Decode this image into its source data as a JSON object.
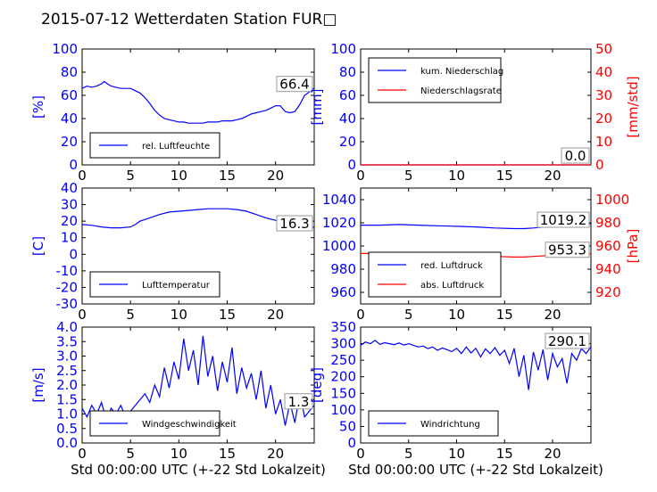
{
  "title": "2015-07-12 Wetterdaten Station FUR□",
  "colors": {
    "primary": "#0000ff",
    "secondary": "#ff0000",
    "axis": "#000000"
  },
  "chart_data": [
    {
      "id": "humidity",
      "type": "line",
      "ylabel": "[%]",
      "ylim": [
        0,
        100
      ],
      "yticks": [
        "0",
        "20",
        "40",
        "60",
        "80",
        "100"
      ],
      "xlim": [
        0,
        24
      ],
      "xticks": [
        "0",
        "5",
        "10",
        "15",
        "20"
      ],
      "xlabel": "",
      "value_label": "66.4",
      "legend": {
        "placement": "lower-left",
        "entries": [
          "rel. Luftfeuchte"
        ]
      },
      "series": [
        {
          "name": "rel. Luftfeuchte",
          "color": "#0000ff",
          "x": [
            0,
            0.5,
            1,
            1.5,
            2,
            2.3,
            2.6,
            3,
            3.5,
            4,
            4.5,
            5,
            5.5,
            6,
            6.5,
            7,
            7.5,
            8,
            8.5,
            9,
            9.5,
            10,
            10.5,
            11,
            11.5,
            12,
            12.5,
            13,
            13.5,
            14,
            14.5,
            15,
            15.5,
            16,
            16.5,
            17,
            17.5,
            18,
            18.5,
            19,
            19.5,
            20,
            20.5,
            21,
            21.5,
            22,
            22.5,
            23,
            23.5,
            24
          ],
          "values": [
            66,
            68,
            67,
            68,
            70,
            72,
            70,
            68,
            67,
            66,
            66,
            66,
            64,
            62,
            58,
            53,
            47,
            43,
            40,
            39,
            38,
            37,
            37,
            36,
            36,
            36,
            36,
            37,
            37,
            37,
            38,
            38,
            38,
            39,
            40,
            42,
            44,
            45,
            46,
            47,
            49,
            51,
            51,
            46,
            45,
            46,
            52,
            60,
            63,
            66.4
          ]
        }
      ]
    },
    {
      "id": "precip",
      "type": "line",
      "ylabel": "[mm]",
      "ylim": [
        0,
        100
      ],
      "yticks": [
        "0",
        "20",
        "40",
        "60",
        "80",
        "100"
      ],
      "ylabel_right": "[mm/std]",
      "ylim_right": [
        0,
        50
      ],
      "yticks_right": [
        "0",
        "10",
        "20",
        "30",
        "40",
        "50"
      ],
      "xlim": [
        0,
        24
      ],
      "xticks": [
        "0",
        "5",
        "10",
        "15",
        "20"
      ],
      "xlabel": "",
      "value_label": "0.0",
      "value_label_2": "0.0",
      "legend": {
        "placement": "upper-left",
        "entries": [
          "kum. Niederschlag",
          "Niederschlagsrate"
        ]
      },
      "series": [
        {
          "name": "kum. Niederschlag",
          "color": "#0000ff",
          "x": [
            0,
            24
          ],
          "values": [
            0,
            0
          ]
        },
        {
          "name": "Niederschlagsrate",
          "color": "#ff0000",
          "x": [
            0,
            24
          ],
          "values": [
            0,
            0
          ],
          "axis": "right"
        }
      ]
    },
    {
      "id": "temperature",
      "type": "line",
      "ylabel": "[C]",
      "ylim": [
        -30,
        40
      ],
      "yticks": [
        "-30",
        "-20",
        "-10",
        "0",
        "10",
        "20",
        "30",
        "40"
      ],
      "xlim": [
        0,
        24
      ],
      "xticks": [
        "0",
        "5",
        "10",
        "15",
        "20"
      ],
      "xlabel": "",
      "value_label": "16.3",
      "legend": {
        "placement": "lower-left",
        "entries": [
          "Lufttemperatur"
        ]
      },
      "series": [
        {
          "name": "Lufttemperatur",
          "color": "#0000ff",
          "x": [
            0,
            1,
            2,
            3,
            4,
            5,
            5.5,
            6,
            7,
            8,
            9,
            10,
            11,
            12,
            13,
            14,
            15,
            16,
            17,
            18,
            19,
            20,
            21,
            22,
            23,
            24
          ],
          "values": [
            18,
            17.5,
            16.5,
            16,
            16,
            16.5,
            18,
            20,
            22,
            24,
            25.5,
            26,
            26.5,
            27,
            27.5,
            27.5,
            27.5,
            27,
            26,
            24,
            22,
            20.5,
            19,
            17.5,
            17,
            16.3
          ]
        }
      ]
    },
    {
      "id": "pressure",
      "type": "line",
      "ylabel": "",
      "ylim": [
        950,
        1050
      ],
      "yticks": [
        "960",
        "980",
        "1000",
        "1020",
        "1040"
      ],
      "ylabel_right": "[hPa]",
      "ylim_right": [
        910,
        1010
      ],
      "yticks_right": [
        "920",
        "940",
        "960",
        "980",
        "1000"
      ],
      "xlim": [
        0,
        24
      ],
      "xticks": [
        "0",
        "5",
        "10",
        "15",
        "20"
      ],
      "xlabel": "",
      "value_label": "1019.2",
      "value_label_2": "953.3",
      "legend": {
        "placement": "lower-left",
        "entries": [
          "red. Luftdruck",
          "abs. Luftdruck"
        ]
      },
      "series": [
        {
          "name": "red. Luftdruck",
          "color": "#0000ff",
          "x": [
            0,
            2,
            4,
            6,
            8,
            10,
            12,
            14,
            16,
            17,
            18,
            20,
            22,
            24
          ],
          "values": [
            1018,
            1018,
            1018.5,
            1018,
            1017.5,
            1017,
            1016.5,
            1015.5,
            1015,
            1015,
            1015.5,
            1017,
            1018.5,
            1019.2
          ]
        },
        {
          "name": "abs. Luftdruck",
          "color": "#ff0000",
          "axis": "right",
          "x": [
            0,
            2,
            4,
            6,
            8,
            10,
            12,
            14,
            16,
            17,
            18,
            20,
            22,
            24
          ],
          "values": [
            953.5,
            953.5,
            954,
            953.5,
            953,
            952.5,
            952,
            951,
            950.5,
            950.5,
            951,
            952,
            953,
            953.3
          ]
        }
      ]
    },
    {
      "id": "wind_speed",
      "type": "line",
      "ylabel": "[m/s]",
      "ylim": [
        0,
        4
      ],
      "yticks": [
        "0.0",
        "0.5",
        "1.0",
        "1.5",
        "2.0",
        "2.5",
        "3.0",
        "3.5",
        "4.0"
      ],
      "xlim": [
        0,
        24
      ],
      "xticks": [
        "0",
        "5",
        "10",
        "15",
        "20"
      ],
      "xlabel": "Std 00:00:00 UTC (+-22 Std Lokalzeit)",
      "value_label": "1.3",
      "legend": {
        "placement": "lower-left",
        "entries": [
          "Windgeschwindigkeit"
        ]
      },
      "series": [
        {
          "name": "Windgeschwindigkeit",
          "color": "#0000ff",
          "x": [
            0,
            0.5,
            1,
            1.5,
            2,
            2.5,
            3,
            3.5,
            4,
            4.5,
            5,
            5.5,
            6,
            6.5,
            7,
            7.5,
            8,
            8.5,
            9,
            9.5,
            10,
            10.5,
            11,
            11.5,
            12,
            12.5,
            13,
            13.5,
            14,
            14.5,
            15,
            15.5,
            16,
            16.5,
            17,
            17.5,
            18,
            18.5,
            19,
            19.5,
            20,
            20.5,
            21,
            21.5,
            22,
            22.5,
            23,
            23.5,
            24
          ],
          "values": [
            1.2,
            0.9,
            1.3,
            1.0,
            1.4,
            0.8,
            1.2,
            1.0,
            1.3,
            0.9,
            1.1,
            1.3,
            1.5,
            1.7,
            1.4,
            2.0,
            1.6,
            2.6,
            1.9,
            2.8,
            2.2,
            3.6,
            2.5,
            3.2,
            2.0,
            3.7,
            2.3,
            3.0,
            1.8,
            2.8,
            2.1,
            3.3,
            1.7,
            2.6,
            1.9,
            2.4,
            1.5,
            2.5,
            1.2,
            2.0,
            1.0,
            1.5,
            0.6,
            1.4,
            0.7,
            1.7,
            0.9,
            1.1,
            1.3
          ]
        }
      ]
    },
    {
      "id": "wind_dir",
      "type": "line",
      "ylabel": "[deg]",
      "ylim": [
        0,
        350
      ],
      "yticks": [
        "0",
        "50",
        "100",
        "150",
        "200",
        "250",
        "300",
        "350"
      ],
      "xlim": [
        0,
        24
      ],
      "xticks": [
        "0",
        "5",
        "10",
        "15",
        "20"
      ],
      "xlabel": "Std 00:00:00 UTC (+-22 Std Lokalzeit)",
      "value_label": "290.1",
      "legend": {
        "placement": "lower-left",
        "entries": [
          "Windrichtung"
        ]
      },
      "series": [
        {
          "name": "Windrichtung",
          "color": "#0000ff",
          "x": [
            0,
            0.5,
            1,
            1.5,
            2,
            2.5,
            3,
            3.5,
            4,
            4.5,
            5,
            5.5,
            6,
            6.5,
            7,
            7.5,
            8,
            8.5,
            9,
            9.5,
            10,
            10.5,
            11,
            11.5,
            12,
            12.5,
            13,
            13.5,
            14,
            14.5,
            15,
            15.5,
            16,
            16.5,
            17,
            17.5,
            18,
            18.5,
            19,
            19.5,
            20,
            20.5,
            21,
            21.5,
            22,
            22.5,
            23,
            23.5,
            24
          ],
          "values": [
            295,
            305,
            300,
            310,
            298,
            303,
            300,
            297,
            302,
            296,
            300,
            295,
            290,
            293,
            285,
            290,
            280,
            287,
            282,
            276,
            286,
            270,
            290,
            272,
            286,
            260,
            284,
            270,
            288,
            265,
            280,
            240,
            286,
            200,
            265,
            160,
            275,
            220,
            282,
            190,
            270,
            230,
            255,
            180,
            270,
            250,
            285,
            270,
            290.1
          ]
        }
      ]
    }
  ]
}
